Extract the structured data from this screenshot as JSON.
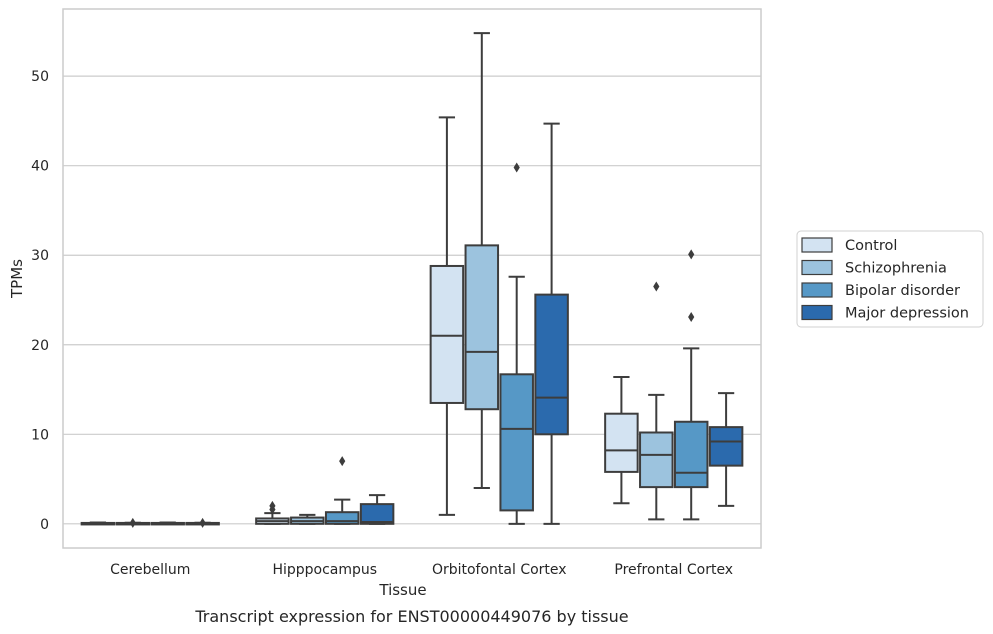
{
  "chart_data": {
    "type": "box",
    "title": "",
    "caption": "Transcript expression for ENST00000449076 by tissue",
    "xlabel": "Tissue",
    "ylabel": "TPMs",
    "ylim": [
      -2.7,
      57.5
    ],
    "yticks": [
      0,
      10,
      20,
      30,
      40,
      50
    ],
    "grid": "horizontal",
    "legend_position": "right",
    "categories": [
      "Cerebellum",
      "Hipppocampus",
      "Orbitofontal Cortex",
      "Prefrontal Cortex"
    ],
    "series": [
      {
        "name": "Control",
        "color": "#d3e3f2",
        "boxes": [
          {
            "whisker_low": 0.0,
            "q1": 0.0,
            "median": 0.05,
            "q3": 0.1,
            "whisker_high": 0.15,
            "outliers": []
          },
          {
            "whisker_low": 0.0,
            "q1": 0.0,
            "median": 0.3,
            "q3": 0.6,
            "whisker_high": 1.2,
            "outliers": [
              1.6,
              2.0
            ]
          },
          {
            "whisker_low": 1.0,
            "q1": 13.5,
            "median": 21.0,
            "q3": 28.8,
            "whisker_high": 45.4,
            "outliers": []
          },
          {
            "whisker_low": 2.3,
            "q1": 5.8,
            "median": 8.2,
            "q3": 12.3,
            "whisker_high": 16.4,
            "outliers": []
          }
        ]
      },
      {
        "name": "Schizophrenia",
        "color": "#9cc3de",
        "boxes": [
          {
            "whisker_low": 0.0,
            "q1": 0.0,
            "median": 0.05,
            "q3": 0.1,
            "whisker_high": 0.12,
            "outliers": [
              0.1
            ]
          },
          {
            "whisker_low": 0.0,
            "q1": 0.0,
            "median": 0.3,
            "q3": 0.7,
            "whisker_high": 1.0,
            "outliers": []
          },
          {
            "whisker_low": 4.0,
            "q1": 12.8,
            "median": 19.2,
            "q3": 31.1,
            "whisker_high": 54.8,
            "outliers": []
          },
          {
            "whisker_low": 0.5,
            "q1": 4.1,
            "median": 7.7,
            "q3": 10.2,
            "whisker_high": 14.4,
            "outliers": [
              26.5
            ]
          }
        ]
      },
      {
        "name": "Bipolar disorder",
        "color": "#5698c6",
        "boxes": [
          {
            "whisker_low": 0.0,
            "q1": 0.0,
            "median": 0.05,
            "q3": 0.1,
            "whisker_high": 0.15,
            "outliers": []
          },
          {
            "whisker_low": 0.0,
            "q1": 0.0,
            "median": 0.3,
            "q3": 1.3,
            "whisker_high": 2.7,
            "outliers": [
              7.0
            ]
          },
          {
            "whisker_low": 0.0,
            "q1": 1.5,
            "median": 10.6,
            "q3": 16.7,
            "whisker_high": 27.6,
            "outliers": [
              39.8
            ]
          },
          {
            "whisker_low": 0.5,
            "q1": 4.1,
            "median": 5.7,
            "q3": 11.4,
            "whisker_high": 19.6,
            "outliers": [
              23.1,
              30.1
            ]
          }
        ]
      },
      {
        "name": "Major depression",
        "color": "#2b6aad",
        "boxes": [
          {
            "whisker_low": 0.0,
            "q1": 0.0,
            "median": 0.05,
            "q3": 0.1,
            "whisker_high": 0.12,
            "outliers": [
              0.1
            ]
          },
          {
            "whisker_low": 0.0,
            "q1": 0.0,
            "median": 0.2,
            "q3": 2.2,
            "whisker_high": 3.2,
            "outliers": []
          },
          {
            "whisker_low": 0.0,
            "q1": 10.0,
            "median": 14.1,
            "q3": 25.6,
            "whisker_high": 44.7,
            "outliers": []
          },
          {
            "whisker_low": 2.0,
            "q1": 6.5,
            "median": 9.2,
            "q3": 10.8,
            "whisker_high": 14.6,
            "outliers": []
          }
        ]
      }
    ]
  }
}
